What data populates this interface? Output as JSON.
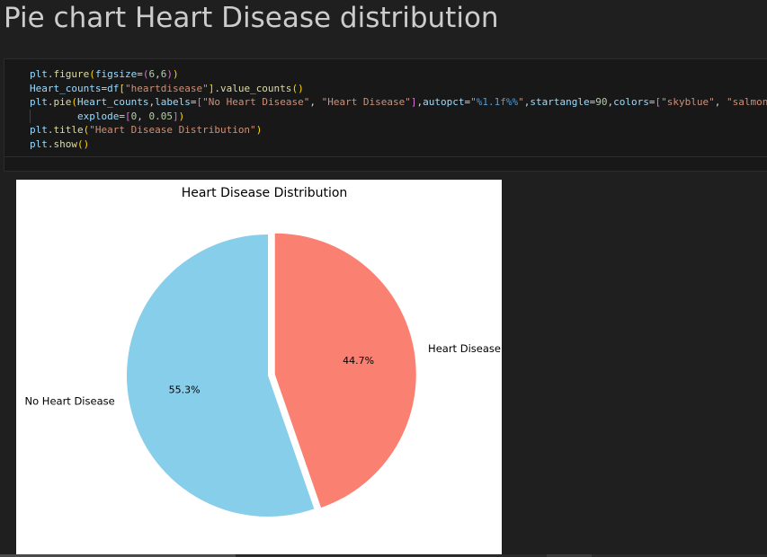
{
  "heading": "Pie chart Heart Disease distribution",
  "code_lines": [
    [
      [
        "plt",
        "tok-var"
      ],
      [
        ".",
        "tok-op"
      ],
      [
        "figure",
        "tok-fn"
      ],
      [
        "(",
        "tok-p1"
      ],
      [
        "figsize",
        "tok-var"
      ],
      [
        "=",
        "tok-op"
      ],
      [
        "(",
        "tok-p2"
      ],
      [
        "6",
        "tok-num"
      ],
      [
        ",",
        "tok-op"
      ],
      [
        "6",
        "tok-num"
      ],
      [
        ")",
        "tok-p2"
      ],
      [
        ")",
        "tok-p1"
      ]
    ],
    [
      [
        "Heart_counts",
        "tok-var"
      ],
      [
        "=",
        "tok-op"
      ],
      [
        "df",
        "tok-var"
      ],
      [
        "[",
        "tok-p1"
      ],
      [
        "\"heartdisease\"",
        "tok-str"
      ],
      [
        "]",
        "tok-p1"
      ],
      [
        ".",
        "tok-op"
      ],
      [
        "value_counts",
        "tok-fn"
      ],
      [
        "(",
        "tok-p1"
      ],
      [
        ")",
        "tok-p1"
      ]
    ],
    [
      [
        "plt",
        "tok-var"
      ],
      [
        ".",
        "tok-op"
      ],
      [
        "pie",
        "tok-fn"
      ],
      [
        "(",
        "tok-p1"
      ],
      [
        "Heart_counts",
        "tok-var"
      ],
      [
        ",",
        "tok-op"
      ],
      [
        "labels",
        "tok-var"
      ],
      [
        "=",
        "tok-op"
      ],
      [
        "[",
        "tok-p2"
      ],
      [
        "\"No Heart Disease\"",
        "tok-str"
      ],
      [
        ", ",
        "tok-op"
      ],
      [
        "\"Heart Disease\"",
        "tok-str"
      ],
      [
        "]",
        "tok-p2"
      ],
      [
        ",",
        "tok-op"
      ],
      [
        "autopct",
        "tok-var"
      ],
      [
        "=",
        "tok-op"
      ],
      [
        "\"",
        "tok-str"
      ],
      [
        "%1.1f%%",
        "tok-fmt"
      ],
      [
        "\"",
        "tok-str"
      ],
      [
        ",",
        "tok-op"
      ],
      [
        "startangle",
        "tok-var"
      ],
      [
        "=",
        "tok-op"
      ],
      [
        "90",
        "tok-num"
      ],
      [
        ",",
        "tok-op"
      ],
      [
        "colors",
        "tok-var"
      ],
      [
        "=",
        "tok-op"
      ],
      [
        "[",
        "tok-p2"
      ],
      [
        "\"skyblue\"",
        "tok-str"
      ],
      [
        ", ",
        "tok-op"
      ],
      [
        "\"salmon\"",
        "tok-str"
      ],
      [
        "]",
        "tok-p2"
      ],
      [
        ",",
        "tok-op"
      ]
    ],
    [
      [
        "        ",
        "tok-op"
      ],
      [
        "explode",
        "tok-var"
      ],
      [
        "=",
        "tok-op"
      ],
      [
        "[",
        "tok-p2"
      ],
      [
        "0",
        "tok-num"
      ],
      [
        ", ",
        "tok-op"
      ],
      [
        "0.05",
        "tok-num"
      ],
      [
        "]",
        "tok-p2"
      ],
      [
        ")",
        "tok-p1"
      ]
    ],
    [
      [
        "plt",
        "tok-var"
      ],
      [
        ".",
        "tok-op"
      ],
      [
        "title",
        "tok-fn"
      ],
      [
        "(",
        "tok-p1"
      ],
      [
        "\"Heart Disease Distribution\"",
        "tok-str"
      ],
      [
        ")",
        "tok-p1"
      ]
    ],
    [
      [
        "plt",
        "tok-var"
      ],
      [
        ".",
        "tok-op"
      ],
      [
        "show",
        "tok-fn"
      ],
      [
        "(",
        "tok-p1"
      ],
      [
        ")",
        "tok-p1"
      ]
    ]
  ],
  "chart_data": {
    "type": "pie",
    "title": "Heart Disease Distribution",
    "categories": [
      "No Heart Disease",
      "Heart Disease"
    ],
    "values": [
      55.3,
      44.7
    ],
    "value_labels": [
      "55.3%",
      "44.7%"
    ],
    "colors": [
      "#87ceeb",
      "#fa8072"
    ],
    "startangle": 90,
    "explode": [
      0,
      0.05
    ],
    "legend": "none"
  }
}
